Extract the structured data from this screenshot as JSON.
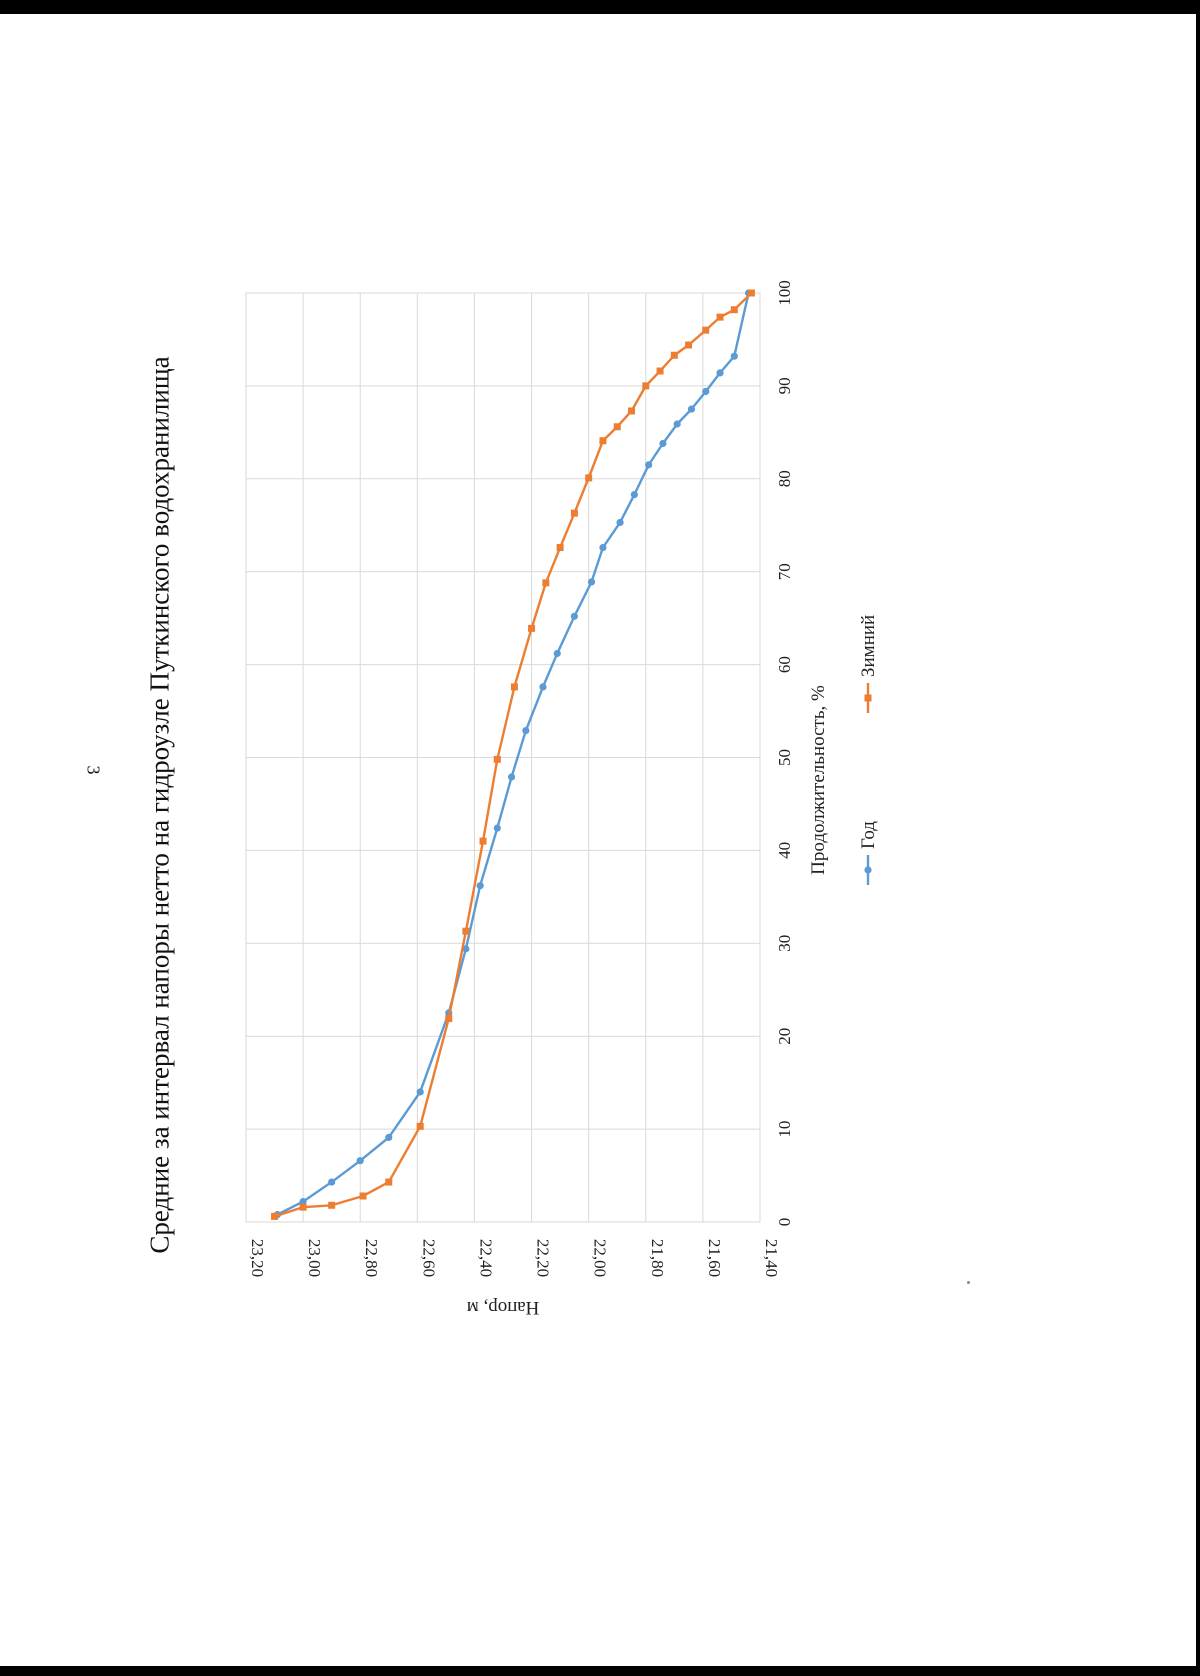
{
  "page": {
    "number": "3"
  },
  "chart_data": {
    "type": "line",
    "title": "Средние за интервал напоры нетто на гидроузле Путкинского водохранилища",
    "xlabel": "Продолжительность, %",
    "ylabel": "Напор, м",
    "xlim": [
      0,
      100
    ],
    "ylim": [
      21.4,
      23.2
    ],
    "xticks": [
      "0",
      "10",
      "20",
      "30",
      "40",
      "50",
      "60",
      "70",
      "80",
      "90",
      "100"
    ],
    "yticks": [
      "21,40",
      "21,60",
      "21,80",
      "22,00",
      "22,20",
      "22,40",
      "22,60",
      "22,80",
      "23,00",
      "23,20"
    ],
    "grid": true,
    "legend_position": "bottom",
    "series": [
      {
        "name": "Год",
        "color": "#5B9BD5",
        "marker": "circle",
        "points": [
          [
            0.8,
            23.09
          ],
          [
            2.2,
            23.0
          ],
          [
            4.3,
            22.9
          ],
          [
            6.6,
            22.8
          ],
          [
            9.1,
            22.7
          ],
          [
            14.0,
            22.59
          ],
          [
            22.5,
            22.49
          ],
          [
            29.4,
            22.43
          ],
          [
            36.2,
            22.38
          ],
          [
            42.4,
            22.32
          ],
          [
            47.9,
            22.27
          ],
          [
            52.9,
            22.22
          ],
          [
            57.6,
            22.16
          ],
          [
            61.2,
            22.11
          ],
          [
            65.2,
            22.05
          ],
          [
            68.9,
            21.99
          ],
          [
            72.6,
            21.95
          ],
          [
            75.3,
            21.89
          ],
          [
            78.3,
            21.84
          ],
          [
            81.5,
            21.79
          ],
          [
            83.8,
            21.74
          ],
          [
            85.9,
            21.69
          ],
          [
            87.5,
            21.64
          ],
          [
            89.4,
            21.59
          ],
          [
            91.4,
            21.54
          ],
          [
            93.2,
            21.49
          ],
          [
            100.0,
            21.44
          ]
        ]
      },
      {
        "name": "Зимний",
        "color": "#ED7D31",
        "marker": "square",
        "points": [
          [
            0.6,
            23.1
          ],
          [
            1.6,
            23.0
          ],
          [
            1.8,
            22.9
          ],
          [
            2.8,
            22.79
          ],
          [
            4.3,
            22.7
          ],
          [
            10.3,
            22.59
          ],
          [
            21.9,
            22.49
          ],
          [
            31.3,
            22.43
          ],
          [
            41.0,
            22.37
          ],
          [
            49.8,
            22.32
          ],
          [
            57.6,
            22.26
          ],
          [
            63.9,
            22.2
          ],
          [
            68.8,
            22.15
          ],
          [
            72.6,
            22.1
          ],
          [
            76.3,
            22.05
          ],
          [
            80.1,
            22.0
          ],
          [
            84.1,
            21.95
          ],
          [
            85.6,
            21.9
          ],
          [
            87.3,
            21.85
          ],
          [
            90.0,
            21.8
          ],
          [
            91.6,
            21.75
          ],
          [
            93.3,
            21.7
          ],
          [
            94.4,
            21.65
          ],
          [
            96.0,
            21.59
          ],
          [
            97.4,
            21.54
          ],
          [
            98.2,
            21.49
          ],
          [
            100.0,
            21.43
          ]
        ]
      }
    ]
  }
}
